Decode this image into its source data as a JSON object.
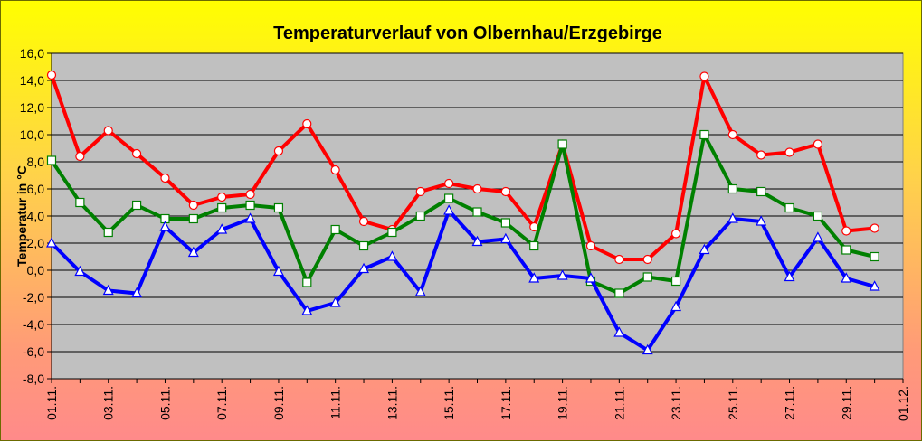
{
  "chart_data": {
    "type": "line",
    "title": "Temperaturverlauf von Olbernhau/Erzgebirge",
    "ylabel": "Temperatur in °C",
    "xlabel": "",
    "ylim": [
      -8,
      16
    ],
    "yticks": [
      "-8,0",
      "-6,0",
      "-4,0",
      "-2,0",
      "0,0",
      "2,0",
      "4,0",
      "6,0",
      "8,0",
      "10,0",
      "12,0",
      "14,0",
      "16,0"
    ],
    "xticks": [
      "01.11.",
      "03.11.",
      "05.11.",
      "07.11.",
      "09.11.",
      "11.11.",
      "13.11.",
      "15.11.",
      "17.11.",
      "19.11.",
      "21.11.",
      "23.11.",
      "25.11.",
      "27.11.",
      "29.11.",
      "01.12."
    ],
    "x": [
      "01.11.",
      "02.11.",
      "03.11.",
      "04.11.",
      "05.11.",
      "06.11.",
      "07.11.",
      "08.11.",
      "09.11.",
      "10.11.",
      "11.11.",
      "12.11.",
      "13.11.",
      "14.11.",
      "15.11.",
      "16.11.",
      "17.11.",
      "18.11.",
      "19.11.",
      "20.11.",
      "21.11.",
      "22.11.",
      "23.11.",
      "24.11.",
      "25.11.",
      "26.11.",
      "27.11.",
      "28.11.",
      "29.11.",
      "30.11."
    ],
    "grid": true,
    "colors": {
      "plot_background": "#c0c0c0",
      "red_series": "#ff0000",
      "green_series": "#008000",
      "blue_series": "#0000ff"
    },
    "series": [
      {
        "color": "#ff0000",
        "marker": "circle",
        "values": [
          14.4,
          8.4,
          10.3,
          8.6,
          6.8,
          4.8,
          5.4,
          5.6,
          8.8,
          10.8,
          7.4,
          3.6,
          3.0,
          5.8,
          6.4,
          6.0,
          5.8,
          3.2,
          9.3,
          1.8,
          0.8,
          0.8,
          2.7,
          14.3,
          10.0,
          8.5,
          8.7,
          9.3,
          2.9,
          3.1
        ]
      },
      {
        "color": "#008000",
        "marker": "square",
        "values": [
          8.1,
          5.0,
          2.8,
          4.8,
          3.8,
          3.8,
          4.6,
          4.8,
          4.6,
          -0.9,
          3.0,
          1.8,
          2.8,
          4.0,
          5.3,
          4.3,
          3.5,
          1.8,
          9.3,
          -0.8,
          -1.7,
          -0.5,
          -0.8,
          10.0,
          6.0,
          5.8,
          4.6,
          4.0,
          1.5,
          1.0
        ]
      },
      {
        "color": "#0000ff",
        "marker": "triangle",
        "values": [
          2.0,
          -0.1,
          -1.5,
          -1.7,
          3.2,
          1.3,
          3.0,
          3.8,
          -0.1,
          -3.0,
          -2.4,
          0.1,
          1.0,
          -1.6,
          4.4,
          2.1,
          2.3,
          -0.6,
          -0.4,
          -0.6,
          -4.6,
          -5.9,
          -2.7,
          1.5,
          3.8,
          3.6,
          -0.5,
          2.4,
          -0.6,
          -1.2
        ]
      }
    ]
  }
}
